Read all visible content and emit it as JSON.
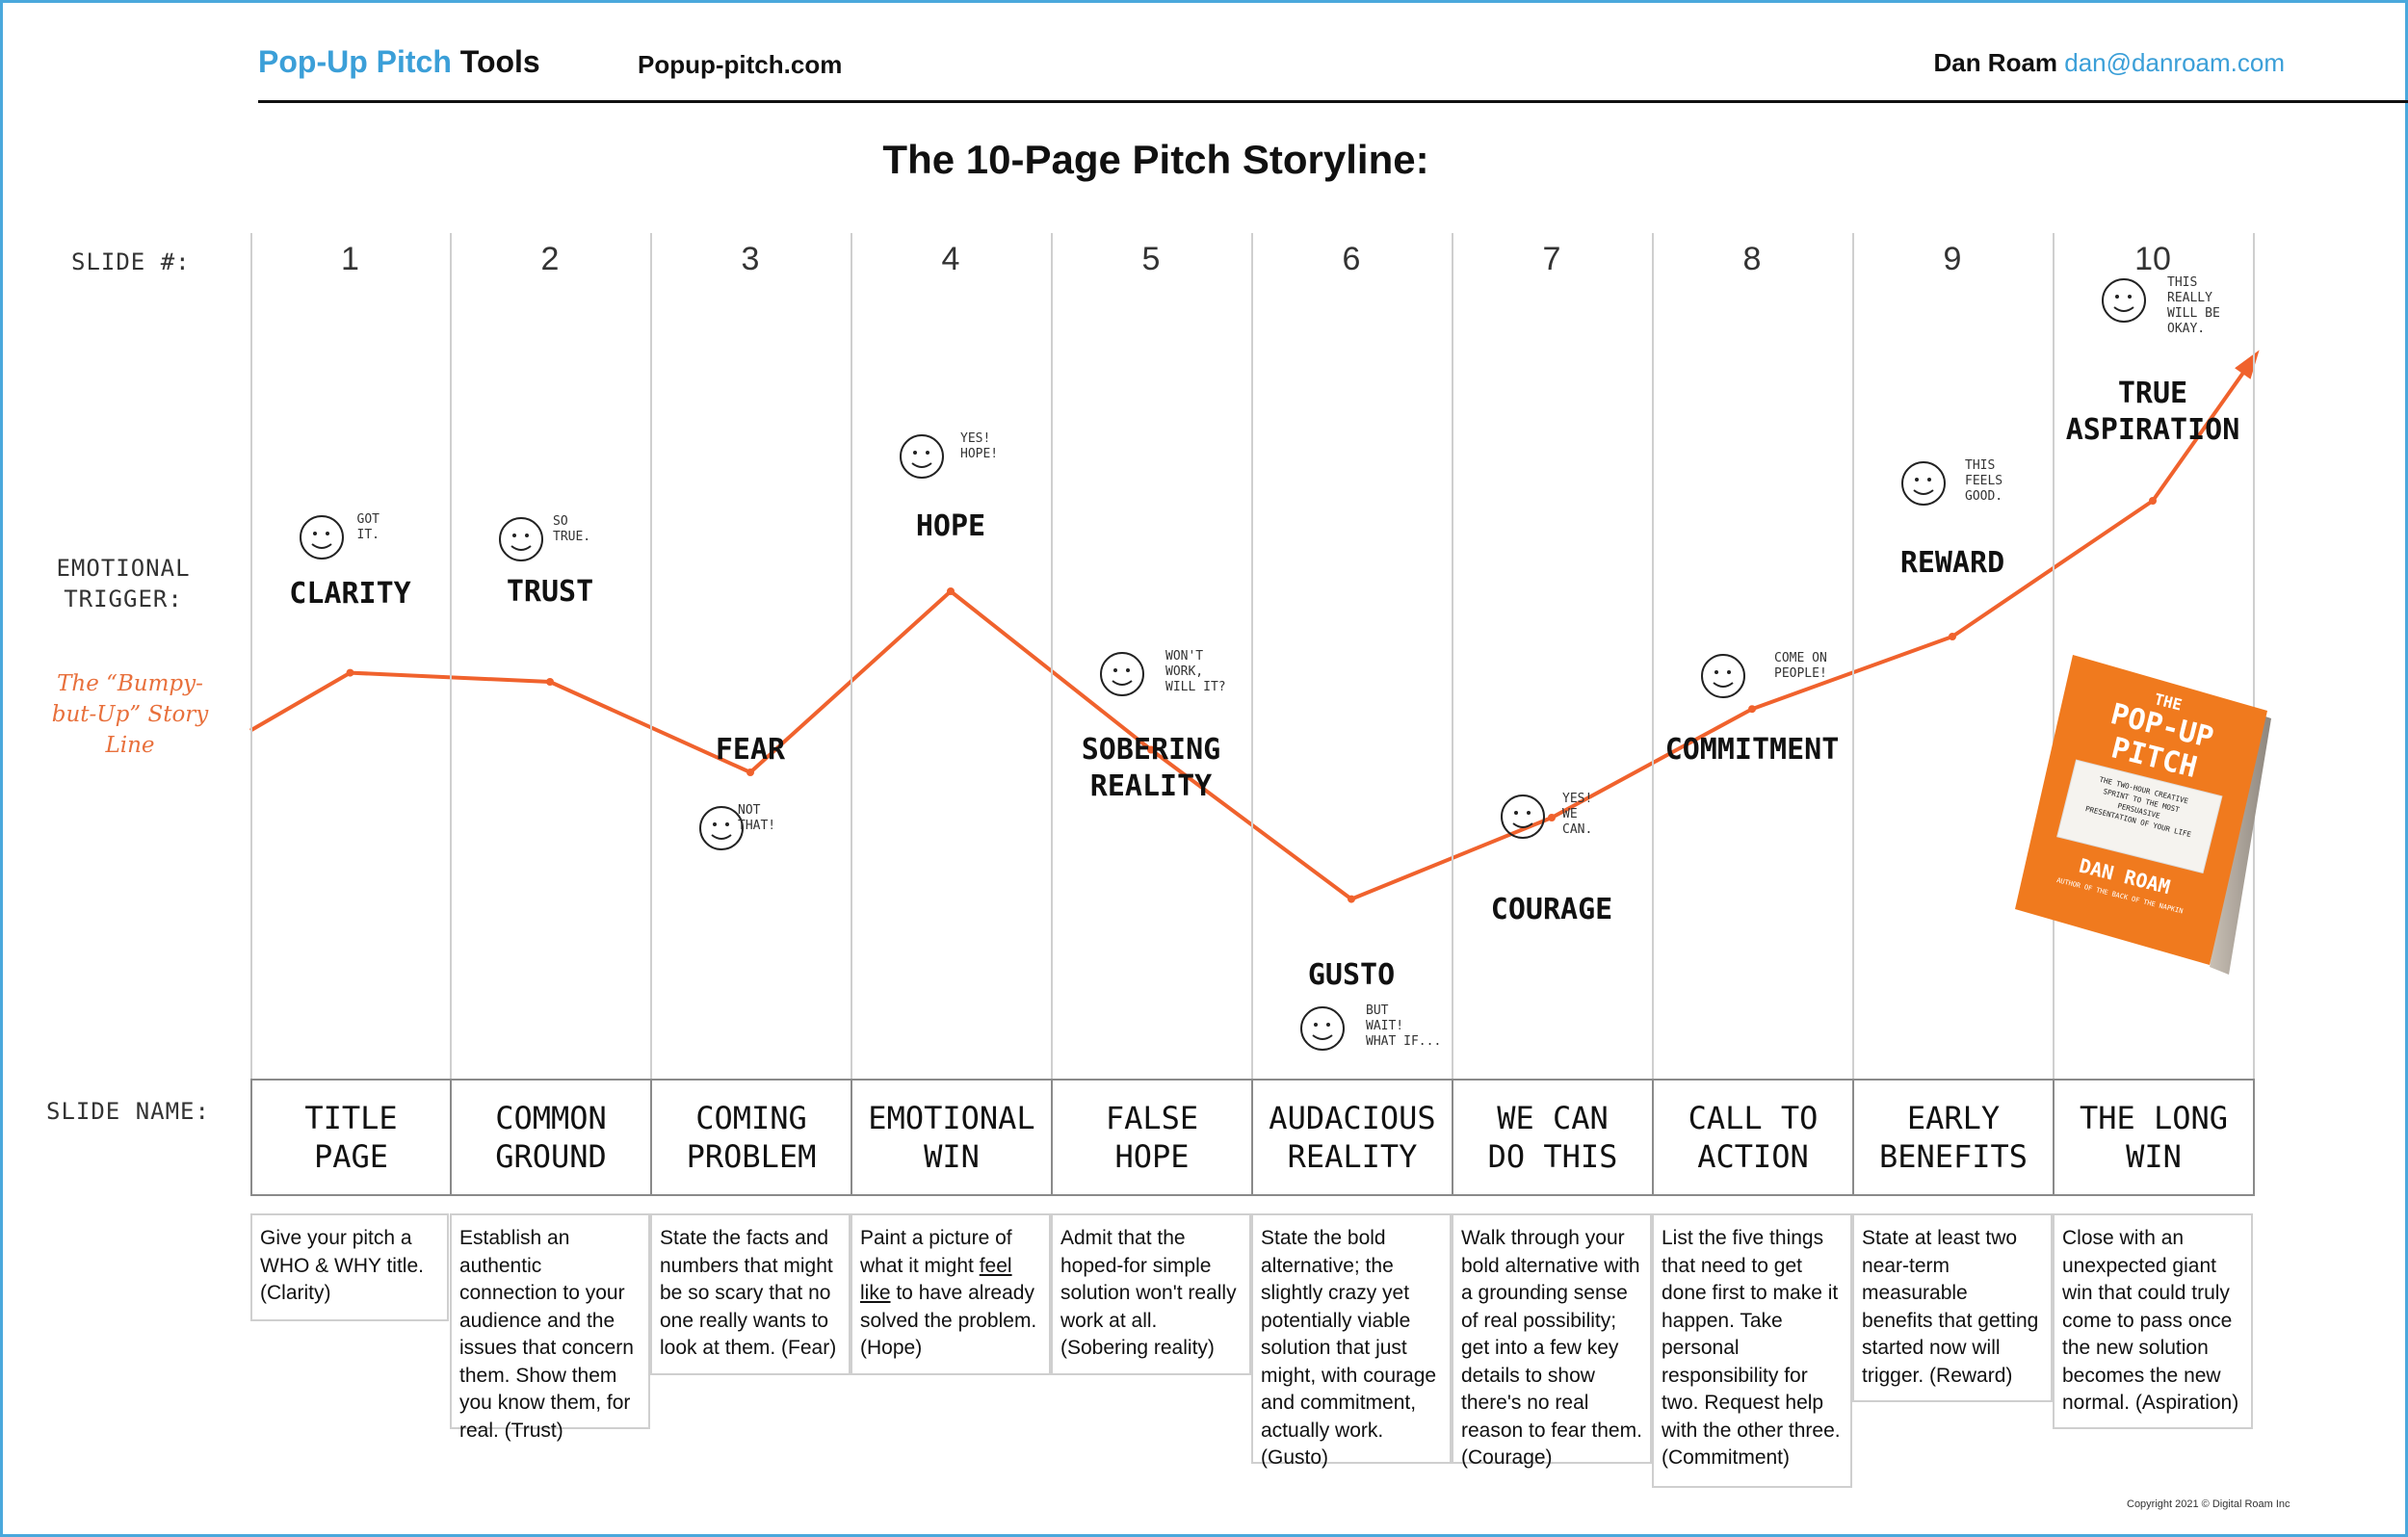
{
  "header": {
    "brand": "Pop-Up Pitch",
    "brand_suffix": "Tools",
    "site": "Popup-pitch.com",
    "author": "Dan Roam",
    "email": "dan@danroam.com"
  },
  "title": "The 10-Page Pitch Storyline:",
  "row_labels": {
    "slide_number": "SLIDE #:",
    "emotional_trigger": "EMOTIONAL TRIGGER:",
    "storyline": "The “Bumpy-but-Up” Story Line",
    "slide_name": "SLIDE NAME:"
  },
  "slides": [
    {
      "number": "1",
      "emotion": "CLARITY",
      "aside": "GOT\nIT.",
      "name": "TITLE\nPAGE",
      "level": 0.62,
      "desc": "Give your pitch a WHO & WHY title. (Clarity)"
    },
    {
      "number": "2",
      "emotion": "TRUST",
      "aside": "SO\nTRUE.",
      "name": "COMMON\nGROUND",
      "level": 0.6,
      "desc": "Establish an authentic connection to your audience and the issues that concern them. Show them you know them, for real. (Trust)"
    },
    {
      "number": "3",
      "emotion": "FEAR",
      "aside": "NOT\nTHAT!",
      "name": "COMING\nPROBLEM",
      "level": 0.4,
      "desc": "State the facts and numbers that might be so scary that no one really wants to look at them. (Fear)"
    },
    {
      "number": "4",
      "emotion": "HOPE",
      "aside": "YES!\nHOPE!",
      "name": "EMOTIONAL\nWIN",
      "level": 0.8,
      "desc_before": "Paint a picture of what it might ",
      "desc_underline": "feel like",
      "desc_after": " to have already solved the problem. (Hope)"
    },
    {
      "number": "5",
      "emotion": "SOBERING\nREALITY",
      "aside": "WON'T\nWORK,\nWILL IT?",
      "name": "FALSE\nHOPE",
      "level": 0.45,
      "desc": "Admit that the hoped-for simple solution won't really work at all. (Sobering reality)"
    },
    {
      "number": "6",
      "emotion": "GUSTO",
      "aside": "BUT\nWAIT!\nWHAT IF...",
      "name": "AUDACIOUS\nREALITY",
      "level": 0.12,
      "desc": "State the bold alternative; the slightly crazy yet potentially viable solution that just might, with courage and commitment, actually work. (Gusto)"
    },
    {
      "number": "7",
      "emotion": "COURAGE",
      "aside": "YES!\nWE\nCAN.",
      "name": "WE CAN\nDO THIS",
      "level": 0.3,
      "desc": "Walk through your bold alternative with a grounding sense of real possibility; get into a few key details to show there's no real reason to fear them. (Courage)"
    },
    {
      "number": "8",
      "emotion": "COMMITMENT",
      "aside": "COME ON\nPEOPLE!",
      "name": "CALL TO\nACTION",
      "level": 0.54,
      "desc": "List the five things that need to get done first to make it happen. Take personal responsibility for two. Request help with the other three. (Commitment)"
    },
    {
      "number": "9",
      "emotion": "REWARD",
      "aside": "THIS\nFEELS\nGOOD.",
      "name": "EARLY\nBENEFITS",
      "level": 0.7,
      "desc": "State at least two near-term measurable benefits that getting started now will trigger. (Reward)"
    },
    {
      "number": "10",
      "emotion": "TRUE\nASPIRATION",
      "aside": "THIS\nREALLY\nWILL BE\nOKAY.",
      "name": "THE LONG\nWIN",
      "level": 1.0,
      "desc": "Close with an unexpected giant win that could truly come to pass once the new solution becomes the new normal. (Aspiration)"
    }
  ],
  "book": {
    "the": "THE",
    "title": "POP-UP\nPITCH",
    "subtitle": "THE TWO-HOUR CREATIVE SPRINT TO THE MOST PERSUASIVE PRESENTATION OF YOUR LIFE",
    "author": "DAN ROAM",
    "byline": "AUTHOR OF THE BACK OF THE NAPKIN",
    "color": "#f07a1e"
  },
  "colors": {
    "storyline": "#f0622d",
    "accent": "#3b9fd8"
  },
  "copyright": "Copyright  2021 © Digital Roam Inc"
}
